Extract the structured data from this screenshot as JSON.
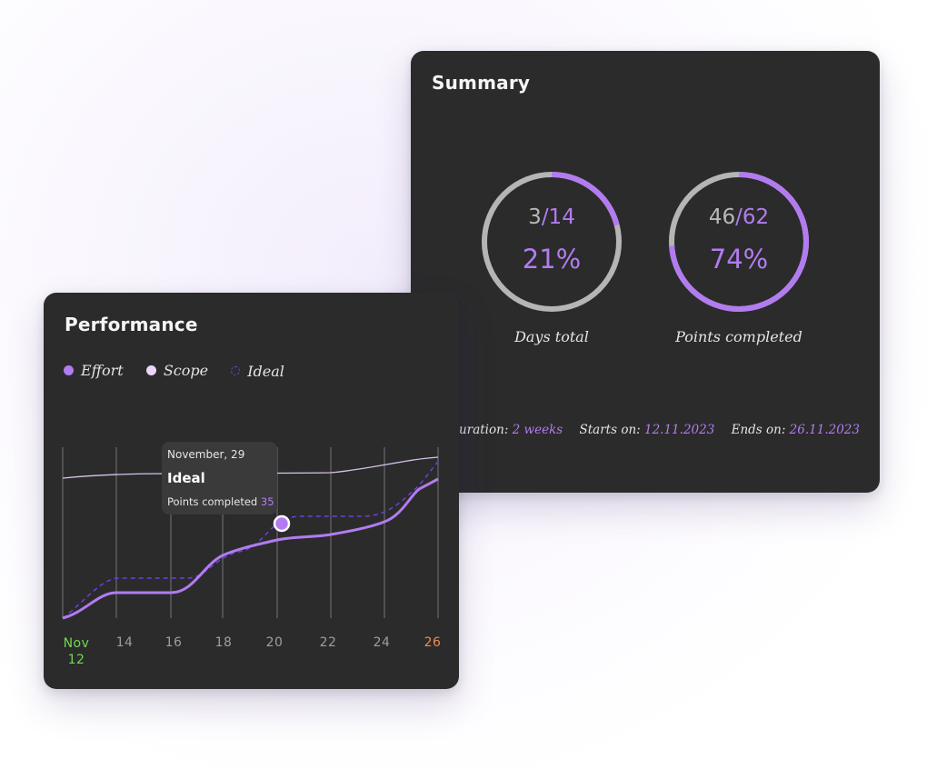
{
  "summary": {
    "title": "Summary",
    "days": {
      "done": "3",
      "total": "/14",
      "percent": "21%",
      "label": "Days total",
      "fraction": 0.21
    },
    "points": {
      "done": "46",
      "total": "/62",
      "percent": "74%",
      "label": "Points completed",
      "fraction": 0.74
    },
    "footer": {
      "duration_label": "nt duration:",
      "duration_value": "2 weeks",
      "starts_label": "Starts on:",
      "starts_value": "12.11.2023",
      "ends_label": "Ends on:",
      "ends_value": "26.11.2023"
    }
  },
  "performance": {
    "title": "Performance",
    "legend": {
      "effort": "Effort",
      "scope": "Scope",
      "ideal": "Ideal"
    },
    "tooltip": {
      "date": "November, 29",
      "title": "Ideal",
      "line_label": "Points completed",
      "line_value": "35"
    },
    "x_labels": {
      "first_month": "Nov",
      "first_day": "12",
      "l14": "14",
      "l16": "16",
      "l18": "18",
      "l20": "20",
      "l22": "22",
      "l24": "24",
      "l26": "26"
    }
  },
  "colors": {
    "accent": "#b27cf0",
    "scope": "#ecd6fa",
    "ideal": "#6d3fdc",
    "start_date": "#6fd94f",
    "end_date": "#f08a55",
    "card": "#2b2b2c"
  }
}
